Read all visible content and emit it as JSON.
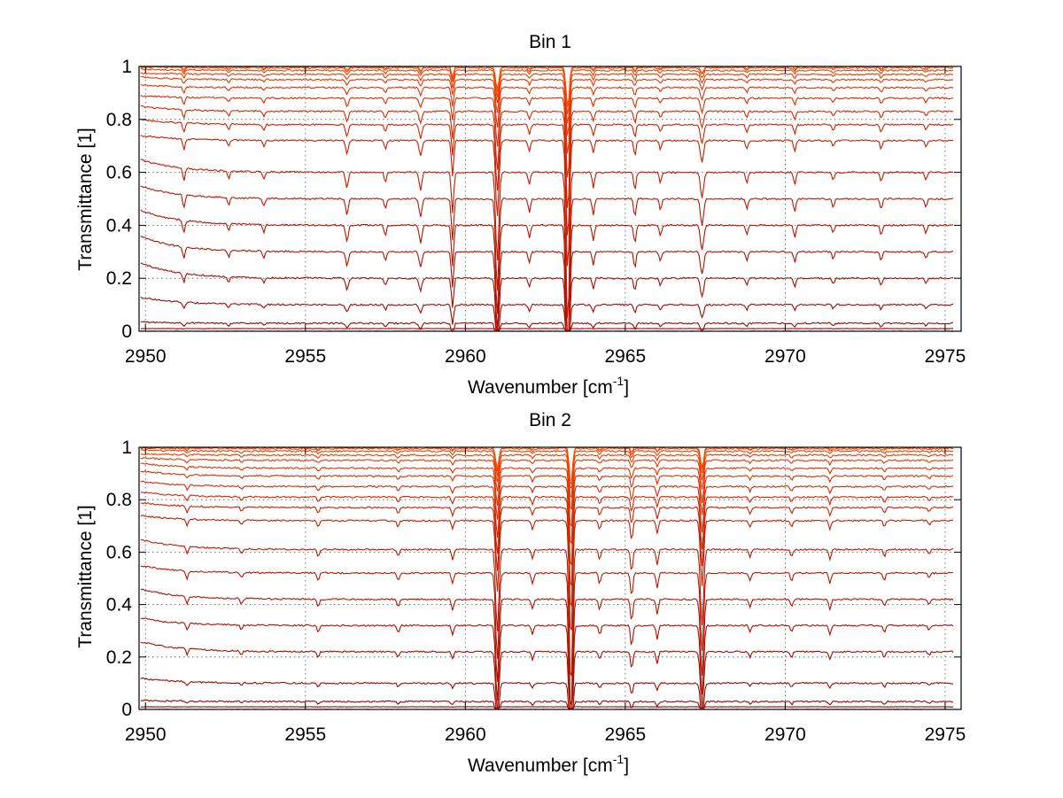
{
  "chart_data": [
    {
      "type": "line",
      "title": "Bin 1",
      "xlabel": "Wavenumber [cm",
      "xlabel_sup": "-1",
      "xlabel_end": "]",
      "ylabel": "Transmittance [1]",
      "xlim": [
        2949.8,
        2975.5
      ],
      "ylim": [
        0,
        1
      ],
      "xticks": [
        2950,
        2955,
        2960,
        2965,
        2970,
        2975
      ],
      "xtick_labels": [
        "2950",
        "2955",
        "2960",
        "2965",
        "2970",
        "2975"
      ],
      "yticks": [
        0,
        0.2,
        0.4,
        0.6,
        0.8,
        1
      ],
      "ytick_labels": [
        "0",
        "0.2",
        "0.4",
        "0.6",
        "0.8",
        "1"
      ],
      "grid": true,
      "series_levels": [
        0.0,
        0.01,
        0.03,
        0.1,
        0.2,
        0.3,
        0.4,
        0.5,
        0.6,
        0.72,
        0.78,
        0.83,
        0.88,
        0.92,
        0.95,
        0.97,
        0.985,
        0.995,
        1.0
      ],
      "series_start_levels": [
        0.0,
        0.01,
        0.035,
        0.13,
        0.26,
        0.36,
        0.46,
        0.55,
        0.65,
        0.74,
        0.8,
        0.85,
        0.89,
        0.93,
        0.96,
        0.975,
        0.99,
        0.997,
        1.0
      ],
      "absorption_lines": [
        {
          "x": 2951.2,
          "depth": 0.05,
          "width": 0.05
        },
        {
          "x": 2952.6,
          "depth": 0.03,
          "width": 0.05
        },
        {
          "x": 2953.7,
          "depth": 0.03,
          "width": 0.05
        },
        {
          "x": 2956.3,
          "depth": 0.06,
          "width": 0.06
        },
        {
          "x": 2957.5,
          "depth": 0.04,
          "width": 0.05
        },
        {
          "x": 2958.6,
          "depth": 0.07,
          "width": 0.06
        },
        {
          "x": 2959.6,
          "depth": 0.16,
          "width": 0.05
        },
        {
          "x": 2961.0,
          "depth": 0.35,
          "width": 0.07
        },
        {
          "x": 2962.0,
          "depth": 0.05,
          "width": 0.05
        },
        {
          "x": 2963.2,
          "depth": 0.6,
          "width": 0.07
        },
        {
          "x": 2964.0,
          "depth": 0.06,
          "width": 0.05
        },
        {
          "x": 2965.3,
          "depth": 0.07,
          "width": 0.05
        },
        {
          "x": 2966.1,
          "depth": 0.04,
          "width": 0.05
        },
        {
          "x": 2967.4,
          "depth": 0.1,
          "width": 0.07
        },
        {
          "x": 2968.8,
          "depth": 0.04,
          "width": 0.05
        },
        {
          "x": 2970.3,
          "depth": 0.05,
          "width": 0.05
        },
        {
          "x": 2971.5,
          "depth": 0.03,
          "width": 0.05
        },
        {
          "x": 2973.0,
          "depth": 0.04,
          "width": 0.05
        },
        {
          "x": 2974.4,
          "depth": 0.03,
          "width": 0.05
        }
      ]
    },
    {
      "type": "line",
      "title": "Bin 2",
      "xlabel": "Wavenumber [cm",
      "xlabel_sup": "-1",
      "xlabel_end": "]",
      "ylabel": "Transmittance [1]",
      "xlim": [
        2949.8,
        2975.5
      ],
      "ylim": [
        0,
        1
      ],
      "xticks": [
        2950,
        2955,
        2960,
        2965,
        2970,
        2975
      ],
      "xtick_labels": [
        "2950",
        "2955",
        "2960",
        "2965",
        "2970",
        "2975"
      ],
      "yticks": [
        0,
        0.2,
        0.4,
        0.6,
        0.8,
        1
      ],
      "ytick_labels": [
        "0",
        "0.2",
        "0.4",
        "0.6",
        "0.8",
        "1"
      ],
      "grid": true,
      "series_levels": [
        0.0,
        0.01,
        0.03,
        0.1,
        0.22,
        0.32,
        0.42,
        0.52,
        0.61,
        0.72,
        0.77,
        0.81,
        0.85,
        0.89,
        0.92,
        0.95,
        0.97,
        0.985,
        0.995,
        1.0
      ],
      "series_start_levels": [
        0.0,
        0.01,
        0.035,
        0.12,
        0.26,
        0.35,
        0.46,
        0.55,
        0.65,
        0.74,
        0.79,
        0.83,
        0.87,
        0.91,
        0.94,
        0.96,
        0.975,
        0.99,
        0.997,
        1.0
      ],
      "absorption_lines": [
        {
          "x": 2951.3,
          "depth": 0.03,
          "width": 0.05
        },
        {
          "x": 2953.0,
          "depth": 0.02,
          "width": 0.05
        },
        {
          "x": 2955.4,
          "depth": 0.03,
          "width": 0.05
        },
        {
          "x": 2957.9,
          "depth": 0.03,
          "width": 0.05
        },
        {
          "x": 2959.6,
          "depth": 0.04,
          "width": 0.05
        },
        {
          "x": 2961.0,
          "depth": 0.33,
          "width": 0.07
        },
        {
          "x": 2962.1,
          "depth": 0.04,
          "width": 0.05
        },
        {
          "x": 2963.3,
          "depth": 0.55,
          "width": 0.07
        },
        {
          "x": 2964.2,
          "depth": 0.04,
          "width": 0.05
        },
        {
          "x": 2965.2,
          "depth": 0.09,
          "width": 0.05
        },
        {
          "x": 2966.0,
          "depth": 0.06,
          "width": 0.05
        },
        {
          "x": 2967.4,
          "depth": 0.3,
          "width": 0.07
        },
        {
          "x": 2968.9,
          "depth": 0.03,
          "width": 0.05
        },
        {
          "x": 2970.2,
          "depth": 0.03,
          "width": 0.05
        },
        {
          "x": 2971.4,
          "depth": 0.04,
          "width": 0.05
        },
        {
          "x": 2973.1,
          "depth": 0.03,
          "width": 0.05
        },
        {
          "x": 2974.5,
          "depth": 0.02,
          "width": 0.05
        }
      ]
    }
  ],
  "colors": {
    "series_dark": "#8b0000",
    "series_mid": "#c81e00",
    "series_light": "#ff4a00",
    "grid": "#555555",
    "axis": "#000000",
    "background": "#ffffff"
  }
}
